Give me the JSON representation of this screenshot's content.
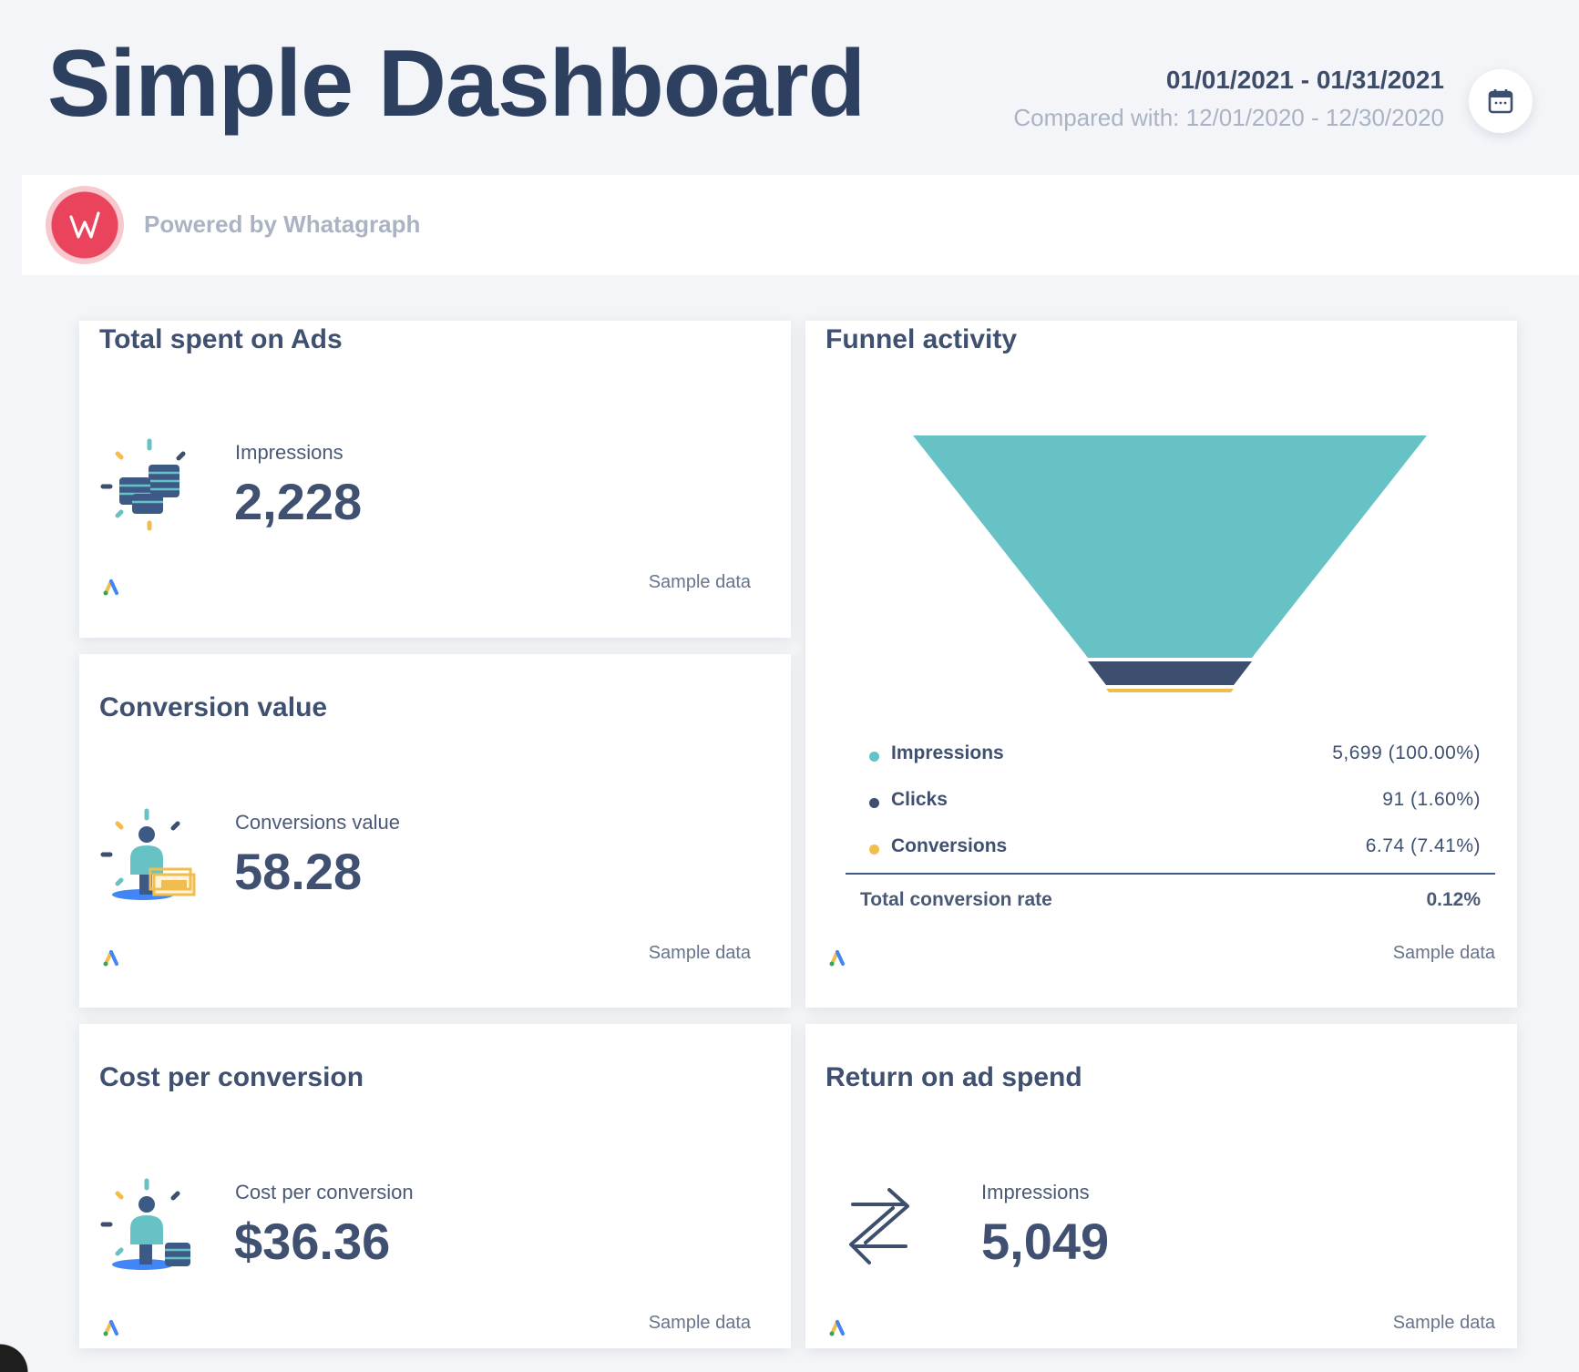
{
  "header": {
    "title": "Simple Dashboard",
    "date_range": "01/01/2021 - 01/31/2021",
    "compared_with": "Compared with: 12/01/2020 - 12/30/2020",
    "calendar_icon": "calendar-icon"
  },
  "powered": {
    "text": "Powered by Whatagraph",
    "logo_icon": "whatagraph-logo",
    "logo_letter": "W"
  },
  "cards": {
    "total_spent": {
      "title": "Total spent on Ads",
      "metric_label": "Impressions",
      "metric_value": "2,228",
      "footer": "Sample data",
      "icon": "coins-stack-icon"
    },
    "conversion_value": {
      "title": "Conversion value",
      "metric_label": "Conversions value",
      "metric_value": "58.28",
      "footer": "Sample data",
      "icon": "person-with-money-icon"
    },
    "cost_per_conversion": {
      "title": "Cost per conversion",
      "metric_label": "Cost per conversion",
      "metric_value": "$36.36",
      "footer": "Sample data",
      "icon": "person-with-coins-icon"
    },
    "roas": {
      "title": "Return on ad spend",
      "metric_label": "Impressions",
      "metric_value": "5,049",
      "footer": "Sample data",
      "icon": "swap-arrows-icon"
    },
    "funnel": {
      "title": "Funnel activity",
      "footer": "Sample data",
      "stages": [
        {
          "name": "Impressions",
          "value": "5,699",
          "percent": "(100.00%)",
          "color": "#67c2c6"
        },
        {
          "name": "Clicks",
          "value": "91",
          "percent": "(1.60%)",
          "color": "#3d4e6e"
        },
        {
          "name": "Conversions",
          "value": "6.74",
          "percent": "(7.41%)",
          "color": "#f2bd4f"
        }
      ],
      "total_label": "Total conversion rate",
      "total_value": "0.12%"
    }
  },
  "source_icon": "google-ads-icon",
  "colors": {
    "accent_teal": "#67c2c6",
    "accent_navy": "#3d4e6e",
    "accent_yellow": "#f2bd4f",
    "brand_red": "#e9445b"
  }
}
